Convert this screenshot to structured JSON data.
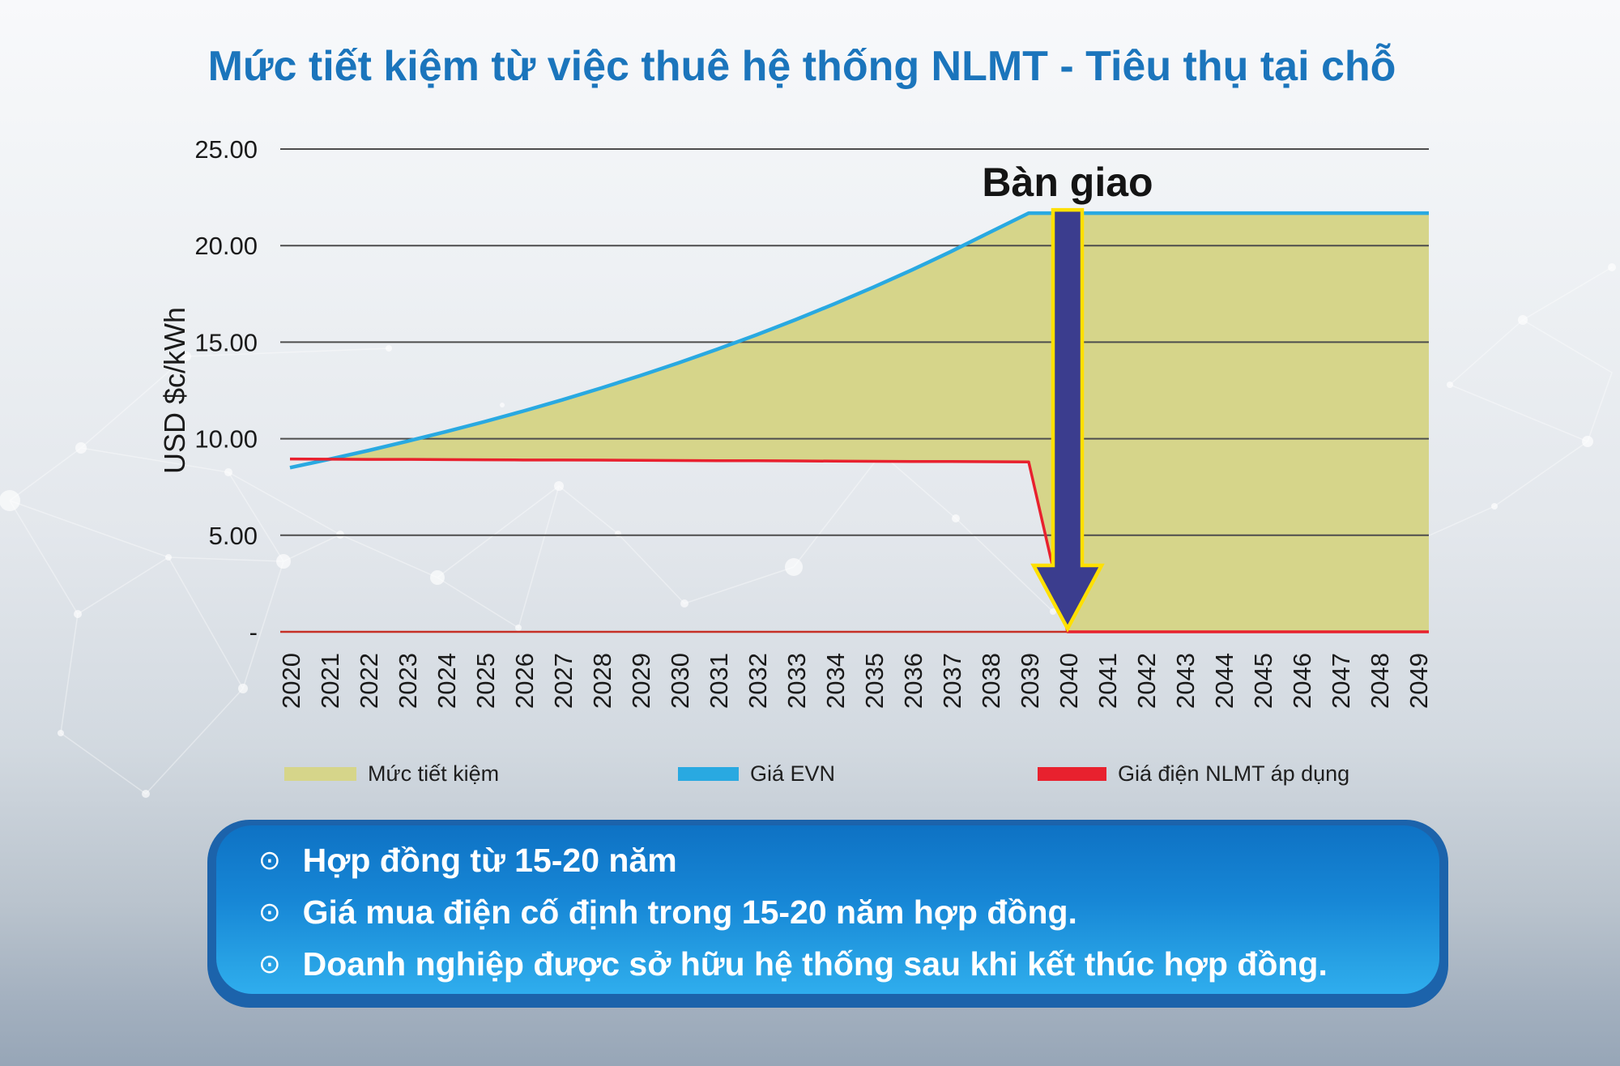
{
  "title": "Mức tiết kiệm từ việc thuê hệ thống NLMT -  Tiêu thụ tại chỗ",
  "chart_data": {
    "type": "area",
    "title": "Mức tiết kiệm từ việc thuê hệ thống NLMT - Tiêu thụ tại chỗ",
    "xlabel": "",
    "ylabel": "USD $c/kWh",
    "ylim": [
      0,
      25
    ],
    "grid": {
      "values": [
        25,
        20,
        15,
        10,
        5
      ],
      "color": "#4d4d4d"
    },
    "yticks": [
      {
        "value": 25,
        "label": "25.00"
      },
      {
        "value": 20,
        "label": "20.00"
      },
      {
        "value": 15,
        "label": "15.00"
      },
      {
        "value": 10,
        "label": "10.00"
      },
      {
        "value": 5,
        "label": "5.00"
      },
      {
        "value": 0,
        "label": "-"
      }
    ],
    "years": [
      2020,
      2021,
      2022,
      2023,
      2024,
      2025,
      2026,
      2027,
      2028,
      2029,
      2030,
      2031,
      2032,
      2033,
      2034,
      2035,
      2036,
      2037,
      2038,
      2039,
      2040,
      2041,
      2042,
      2043,
      2044,
      2045,
      2046,
      2047,
      2048,
      2049
    ],
    "series": [
      {
        "name": "Mức tiết kiệm",
        "type": "area",
        "color": "#D6D58A",
        "description": "khoảng chênh lệch giữa Giá EVN và Giá điện NLMT áp dụng"
      },
      {
        "name": "Giá EVN",
        "type": "line",
        "color": "#29A9E1",
        "values": [
          8.5,
          8.93,
          9.38,
          9.86,
          10.36,
          10.88,
          11.43,
          12.01,
          12.62,
          13.26,
          13.93,
          14.64,
          15.38,
          16.16,
          16.98,
          17.84,
          18.74,
          19.69,
          20.69,
          21.68,
          21.68,
          21.68,
          21.68,
          21.68,
          21.68,
          21.68,
          21.68,
          21.68,
          21.68,
          21.68
        ]
      },
      {
        "name": "Giá điện NLMT áp dụng",
        "type": "line",
        "color": "#E8212E",
        "values": [
          8.95,
          8.94,
          8.93,
          8.93,
          8.92,
          8.91,
          8.9,
          8.9,
          8.89,
          8.88,
          8.87,
          8.86,
          8.86,
          8.85,
          8.84,
          8.83,
          8.82,
          8.82,
          8.81,
          8.8,
          0,
          0,
          0,
          0,
          0,
          0,
          0,
          0,
          0,
          0
        ]
      }
    ],
    "annotation": {
      "label": "Bàn giao",
      "year": 2040,
      "arrow_color": "#3B3D8E",
      "arrow_outline": "#FFE000"
    },
    "axis_line_color": "#C63026",
    "legend_position": "bottom"
  },
  "legend": {
    "items": [
      {
        "label": "Mức tiết kiệm",
        "color": "#D6D58A"
      },
      {
        "label": "Giá EVN",
        "color": "#29A9E1"
      },
      {
        "label": "Giá điện NLMT áp dụng",
        "color": "#E8212E"
      }
    ]
  },
  "callout_box": {
    "bullet_char": "⊙",
    "background_top": "#0E72C4",
    "background_bottom": "#2FADEE",
    "border_color": "#1C63AB",
    "bullets": [
      "Hợp đồng từ 15-20 năm",
      "Giá mua điện cố định trong 15-20 năm hợp đồng.",
      "Doanh nghiệp được sở hữu hệ thống sau khi kết thúc hợp đồng."
    ]
  },
  "colors": {
    "title": "#1B75BC",
    "axis_text": "#1A1A1A"
  }
}
